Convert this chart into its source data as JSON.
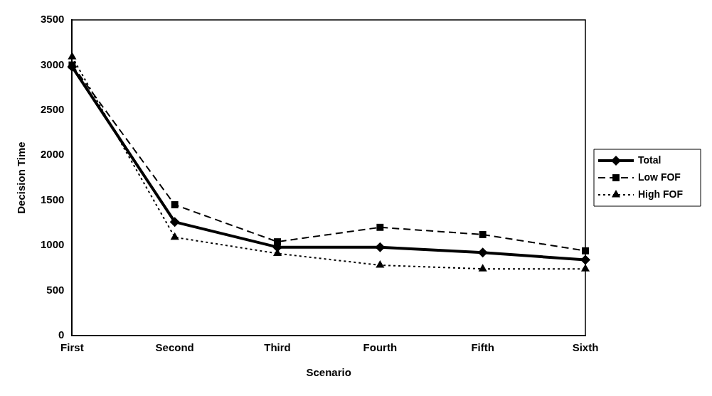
{
  "chart_data": {
    "type": "line",
    "xlabel": "Scenario",
    "ylabel": "Decision Time",
    "categories": [
      "First",
      "Second",
      "Third",
      "Fourth",
      "Fifth",
      "Sixth"
    ],
    "series": [
      {
        "name": "Total",
        "color": "#000000",
        "values": [
          2980,
          1260,
          980,
          980,
          920,
          840
        ],
        "marker": "diamond",
        "line_style": "solid"
      },
      {
        "name": "Low FOF",
        "color": "#000000",
        "values": [
          3000,
          1450,
          1040,
          1200,
          1120,
          940
        ],
        "marker": "square",
        "line_style": "dashed"
      },
      {
        "name": "High FOF",
        "color": "#000000",
        "values": [
          3090,
          1090,
          910,
          780,
          740,
          740
        ],
        "marker": "triangle",
        "line_style": "dotted"
      }
    ],
    "ylim": [
      0,
      3500
    ],
    "yticks": [
      0,
      500,
      1000,
      1500,
      2000,
      2500,
      3000,
      3500
    ],
    "grid": false,
    "legend": "right"
  }
}
